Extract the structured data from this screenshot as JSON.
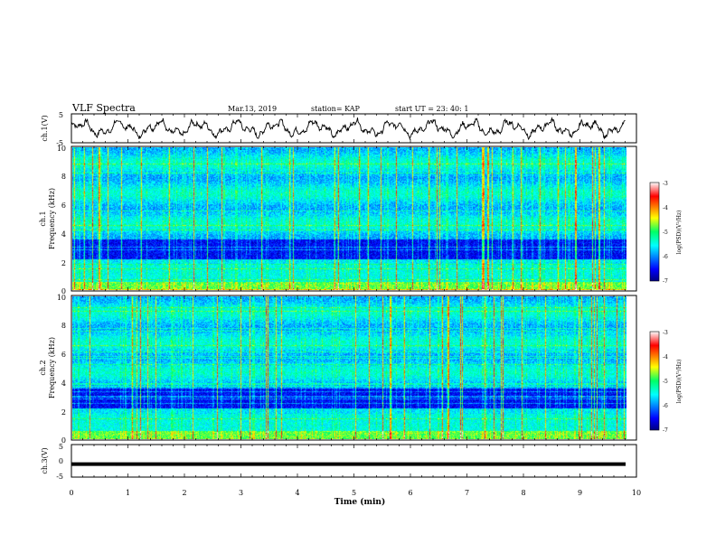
{
  "header": {
    "title": "VLF Spectra",
    "date": "Mar.13, 2019",
    "station": "station= KAP",
    "start": "start  UT  =   23: 40: 1"
  },
  "chart_data": [
    {
      "type": "line",
      "ylabel": "ch.1(V)",
      "ylim": [
        -5,
        5
      ],
      "yticks": [
        "5",
        "-5"
      ],
      "xlim": [
        0,
        10
      ],
      "description_series": "oscillating voltage roughly between -3 and 3"
    },
    {
      "type": "heatmap",
      "ylabel_line1": "ch.1",
      "ylabel_line2": "Frequency (kHz)",
      "ylim": [
        0,
        10
      ],
      "yticks": [
        "0",
        "2",
        "4",
        "6",
        "8",
        "10"
      ],
      "xlim": [
        0,
        9.8
      ],
      "colorbar": {
        "label": "log(PSD)(V²/Hz)",
        "range": [
          -7,
          -3
        ],
        "ticks": [
          "-3",
          "-4",
          "-5",
          "-6",
          "-7"
        ]
      }
    },
    {
      "type": "heatmap",
      "ylabel_line1": "ch.2",
      "ylabel_line2": "Frequency (kHz)",
      "ylim": [
        0,
        10
      ],
      "yticks": [
        "0",
        "2",
        "4",
        "6",
        "8",
        "10"
      ],
      "xlim": [
        0,
        9.8
      ],
      "colorbar": {
        "label": "log(PSD)(V²/Hz)",
        "range": [
          -7,
          -3
        ],
        "ticks": [
          "-3",
          "-4",
          "-5",
          "-6",
          "-7"
        ]
      }
    },
    {
      "type": "line",
      "ylabel": "ch.3(V)",
      "ylim": [
        -5,
        5
      ],
      "yticks": [
        "5",
        "0",
        "-5"
      ],
      "xlim": [
        0,
        10
      ],
      "series": [
        {
          "values": [
            -1,
            -1
          ]
        }
      ]
    }
  ],
  "xaxis": {
    "label": "Time  (min)",
    "ticks": [
      "0",
      "1",
      "2",
      "3",
      "4",
      "5",
      "6",
      "7",
      "8",
      "9",
      "10"
    ]
  }
}
